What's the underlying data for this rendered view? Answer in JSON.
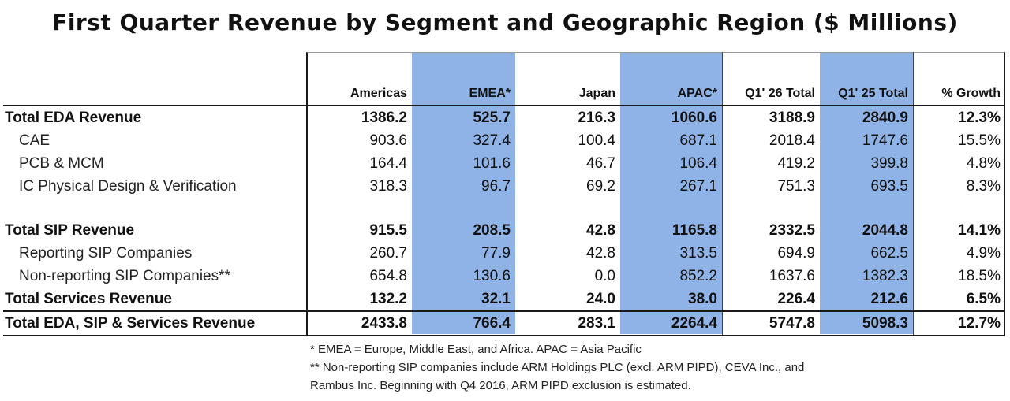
{
  "title": "First Quarter Revenue by Segment and Geographic Region ($ Millions)",
  "table": {
    "columns": [
      "Americas",
      "EMEA*",
      "Japan",
      "APAC*",
      "Q1' 26 Total",
      "Q1' 25 Total",
      "% Growth"
    ],
    "rows": [
      {
        "label": "Total EDA Revenue",
        "values": [
          "1386.2",
          "525.7",
          "216.3",
          "1060.6",
          "3188.9",
          "2840.9",
          "12.3%"
        ]
      },
      {
        "label": "CAE",
        "values": [
          "903.6",
          "327.4",
          "100.4",
          "687.1",
          "2018.4",
          "1747.6",
          "15.5%"
        ]
      },
      {
        "label": "PCB & MCM",
        "values": [
          "164.4",
          "101.6",
          "46.7",
          "106.4",
          "419.2",
          "399.8",
          "4.8%"
        ]
      },
      {
        "label": "IC Physical Design & Verification",
        "values": [
          "318.3",
          "96.7",
          "69.2",
          "267.1",
          "751.3",
          "693.5",
          "8.3%"
        ]
      },
      {
        "label": "Total SIP Revenue",
        "values": [
          "915.5",
          "208.5",
          "42.8",
          "1165.8",
          "2332.5",
          "2044.8",
          "14.1%"
        ]
      },
      {
        "label": "Reporting SIP Companies",
        "values": [
          "260.7",
          "77.9",
          "42.8",
          "313.5",
          "694.9",
          "662.5",
          "4.9%"
        ]
      },
      {
        "label": "Non-reporting SIP Companies**",
        "values": [
          "654.8",
          "130.6",
          "0.0",
          "852.2",
          "1637.6",
          "1382.3",
          "18.5%"
        ]
      },
      {
        "label": "Total Services Revenue",
        "values": [
          "132.2",
          "32.1",
          "24.0",
          "38.0",
          "226.4",
          "212.6",
          "6.5%"
        ]
      },
      {
        "label": "Total EDA, SIP & Services Revenue",
        "values": [
          "2433.8",
          "766.4",
          "283.1",
          "2264.4",
          "5747.8",
          "5098.3",
          "12.7%"
        ]
      }
    ]
  },
  "notes": [
    "* EMEA = Europe, Middle East, and Africa. APAC = Asia Pacific",
    "** Non-reporting SIP companies include ARM Holdings PLC (excl. ARM PIPD), CEVA Inc., and",
    "Rambus Inc. Beginning with Q4 2016, ARM PIPD exclusion is estimated."
  ],
  "colors": {
    "highlight": "#8fb3e6"
  }
}
